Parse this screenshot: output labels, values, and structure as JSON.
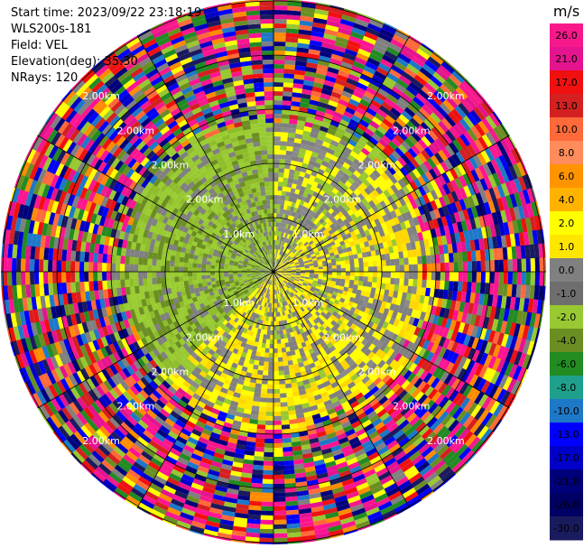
{
  "header": {
    "start_time": "Start time: 2023/09/22 23:18:19",
    "instrument": "WLS200s-181",
    "field": "Field: VEL",
    "elevation": "Elevation(deg): 35.30",
    "nrays": "NRays: 120"
  },
  "chart_data": {
    "type": "heatmap",
    "projection": "polar-ppi",
    "n_rays": 120,
    "ring_labels": [
      "1.0km",
      "2.00km",
      "2.00km",
      "2.00km",
      "2.00km"
    ],
    "colorbar": {
      "unit": "m/s",
      "ticks": [
        "26.0",
        "21.0",
        "17.0",
        "13.0",
        "10.0",
        "8.0",
        "6.0",
        "4.0",
        "2.0",
        "1.0",
        "0.0",
        "-1.0",
        "-2.0",
        "-4.0",
        "-6.0",
        "-8.0",
        "-10.0",
        "-13.0",
        "-17.0",
        "-21.0",
        "-26.0",
        "-30.0"
      ],
      "colors": [
        "#f7198c",
        "#e4148e",
        "#f01010",
        "#d42020",
        "#ff6a3a",
        "#ff8c5a",
        "#ff9400",
        "#ffb300",
        "#ffff00",
        "#ffe600",
        "#808080",
        "#6e6e6e",
        "#98c832",
        "#6b8e23",
        "#228b22",
        "#1fa08c",
        "#1e78c8",
        "#0000ff",
        "#0000c8",
        "#00007a",
        "#000064",
        "#1a1a5e"
      ]
    },
    "palette": {
      "noise": [
        "#e4148e",
        "#f7198c",
        "#ff1493",
        "#0000ff",
        "#00007a",
        "#ffff00",
        "#ff8c00",
        "#808080",
        "#ff6a3a",
        "#1a1a5e",
        "#228b22",
        "#6b8e23",
        "#1e78c8",
        "#d42020",
        "#98c832",
        "#0000c8",
        "#f01010"
      ],
      "green": [
        "#98c832",
        "#8fbc2a",
        "#6b8e23",
        "#9acd32",
        "#808080"
      ],
      "yellow": [
        "#ffff00",
        "#ffe600",
        "#ffd700",
        "#808080"
      ],
      "gray": [
        "#808080",
        "#8a8a8a",
        "#98c832",
        "#ffff00"
      ]
    }
  }
}
